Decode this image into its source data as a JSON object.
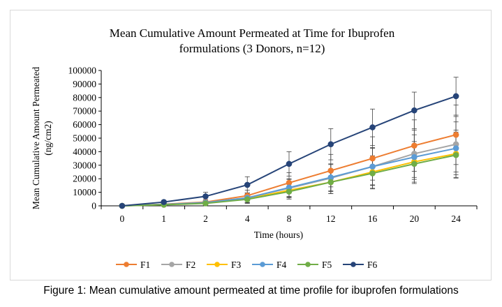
{
  "chart_data": {
    "type": "line",
    "title_lines": [
      "Mean Cumulative Amount Permeated at Time for Ibuprofen",
      "formulations (3 Donors, n=12)"
    ],
    "xlabel": "Time (hours)",
    "ylabel_lines": [
      "Mean Cumulative Amount Permeated",
      "(ng/cm2)"
    ],
    "categories": [
      "0",
      "1",
      "2",
      "4",
      "8",
      "12",
      "16",
      "20",
      "24"
    ],
    "ylim": [
      0,
      100000
    ],
    "yticks": [
      0,
      10000,
      20000,
      30000,
      40000,
      50000,
      60000,
      70000,
      80000,
      90000,
      100000
    ],
    "grid": false,
    "legend_position": "bottom",
    "error_bars": true,
    "series": [
      {
        "name": "F1",
        "color": "#ED7D31",
        "values": [
          0,
          1200,
          2800,
          7500,
          17000,
          26000,
          35000,
          44500,
          52500
        ],
        "errors": [
          0,
          700,
          1800,
          4000,
          7500,
          12000,
          16000,
          19000,
          22000
        ]
      },
      {
        "name": "F2",
        "color": "#A5A5A5",
        "values": [
          0,
          1000,
          2400,
          6000,
          13000,
          20500,
          29000,
          38500,
          45500
        ],
        "errors": [
          0,
          600,
          1500,
          3500,
          6500,
          10000,
          14000,
          17500,
          20500
        ]
      },
      {
        "name": "F3",
        "color": "#FFC000",
        "values": [
          0,
          900,
          2000,
          5200,
          11500,
          17500,
          25000,
          32500,
          38500
        ],
        "errors": [
          0,
          500,
          1300,
          3000,
          5500,
          8500,
          12000,
          15000,
          17500
        ]
      },
      {
        "name": "F4",
        "color": "#5B9BD5",
        "values": [
          0,
          1000,
          2300,
          5800,
          13500,
          21000,
          29000,
          36000,
          42500
        ],
        "errors": [
          0,
          600,
          1500,
          3500,
          6500,
          10000,
          13500,
          16500,
          19500
        ]
      },
      {
        "name": "F5",
        "color": "#70AD47",
        "values": [
          0,
          800,
          1800,
          4800,
          10500,
          17500,
          24000,
          31000,
          37500
        ],
        "errors": [
          0,
          500,
          1200,
          3000,
          5500,
          8500,
          11500,
          14500,
          17000
        ]
      },
      {
        "name": "F6",
        "color": "#264478",
        "values": [
          0,
          2800,
          7000,
          15500,
          31000,
          45500,
          58000,
          70500,
          81000
        ],
        "errors": [
          0,
          1200,
          3000,
          6000,
          9000,
          11500,
          13500,
          13500,
          14000
        ]
      }
    ]
  },
  "caption": "Figure 1: Mean cumulative amount permeated at time profile for ibuprofen formulations"
}
